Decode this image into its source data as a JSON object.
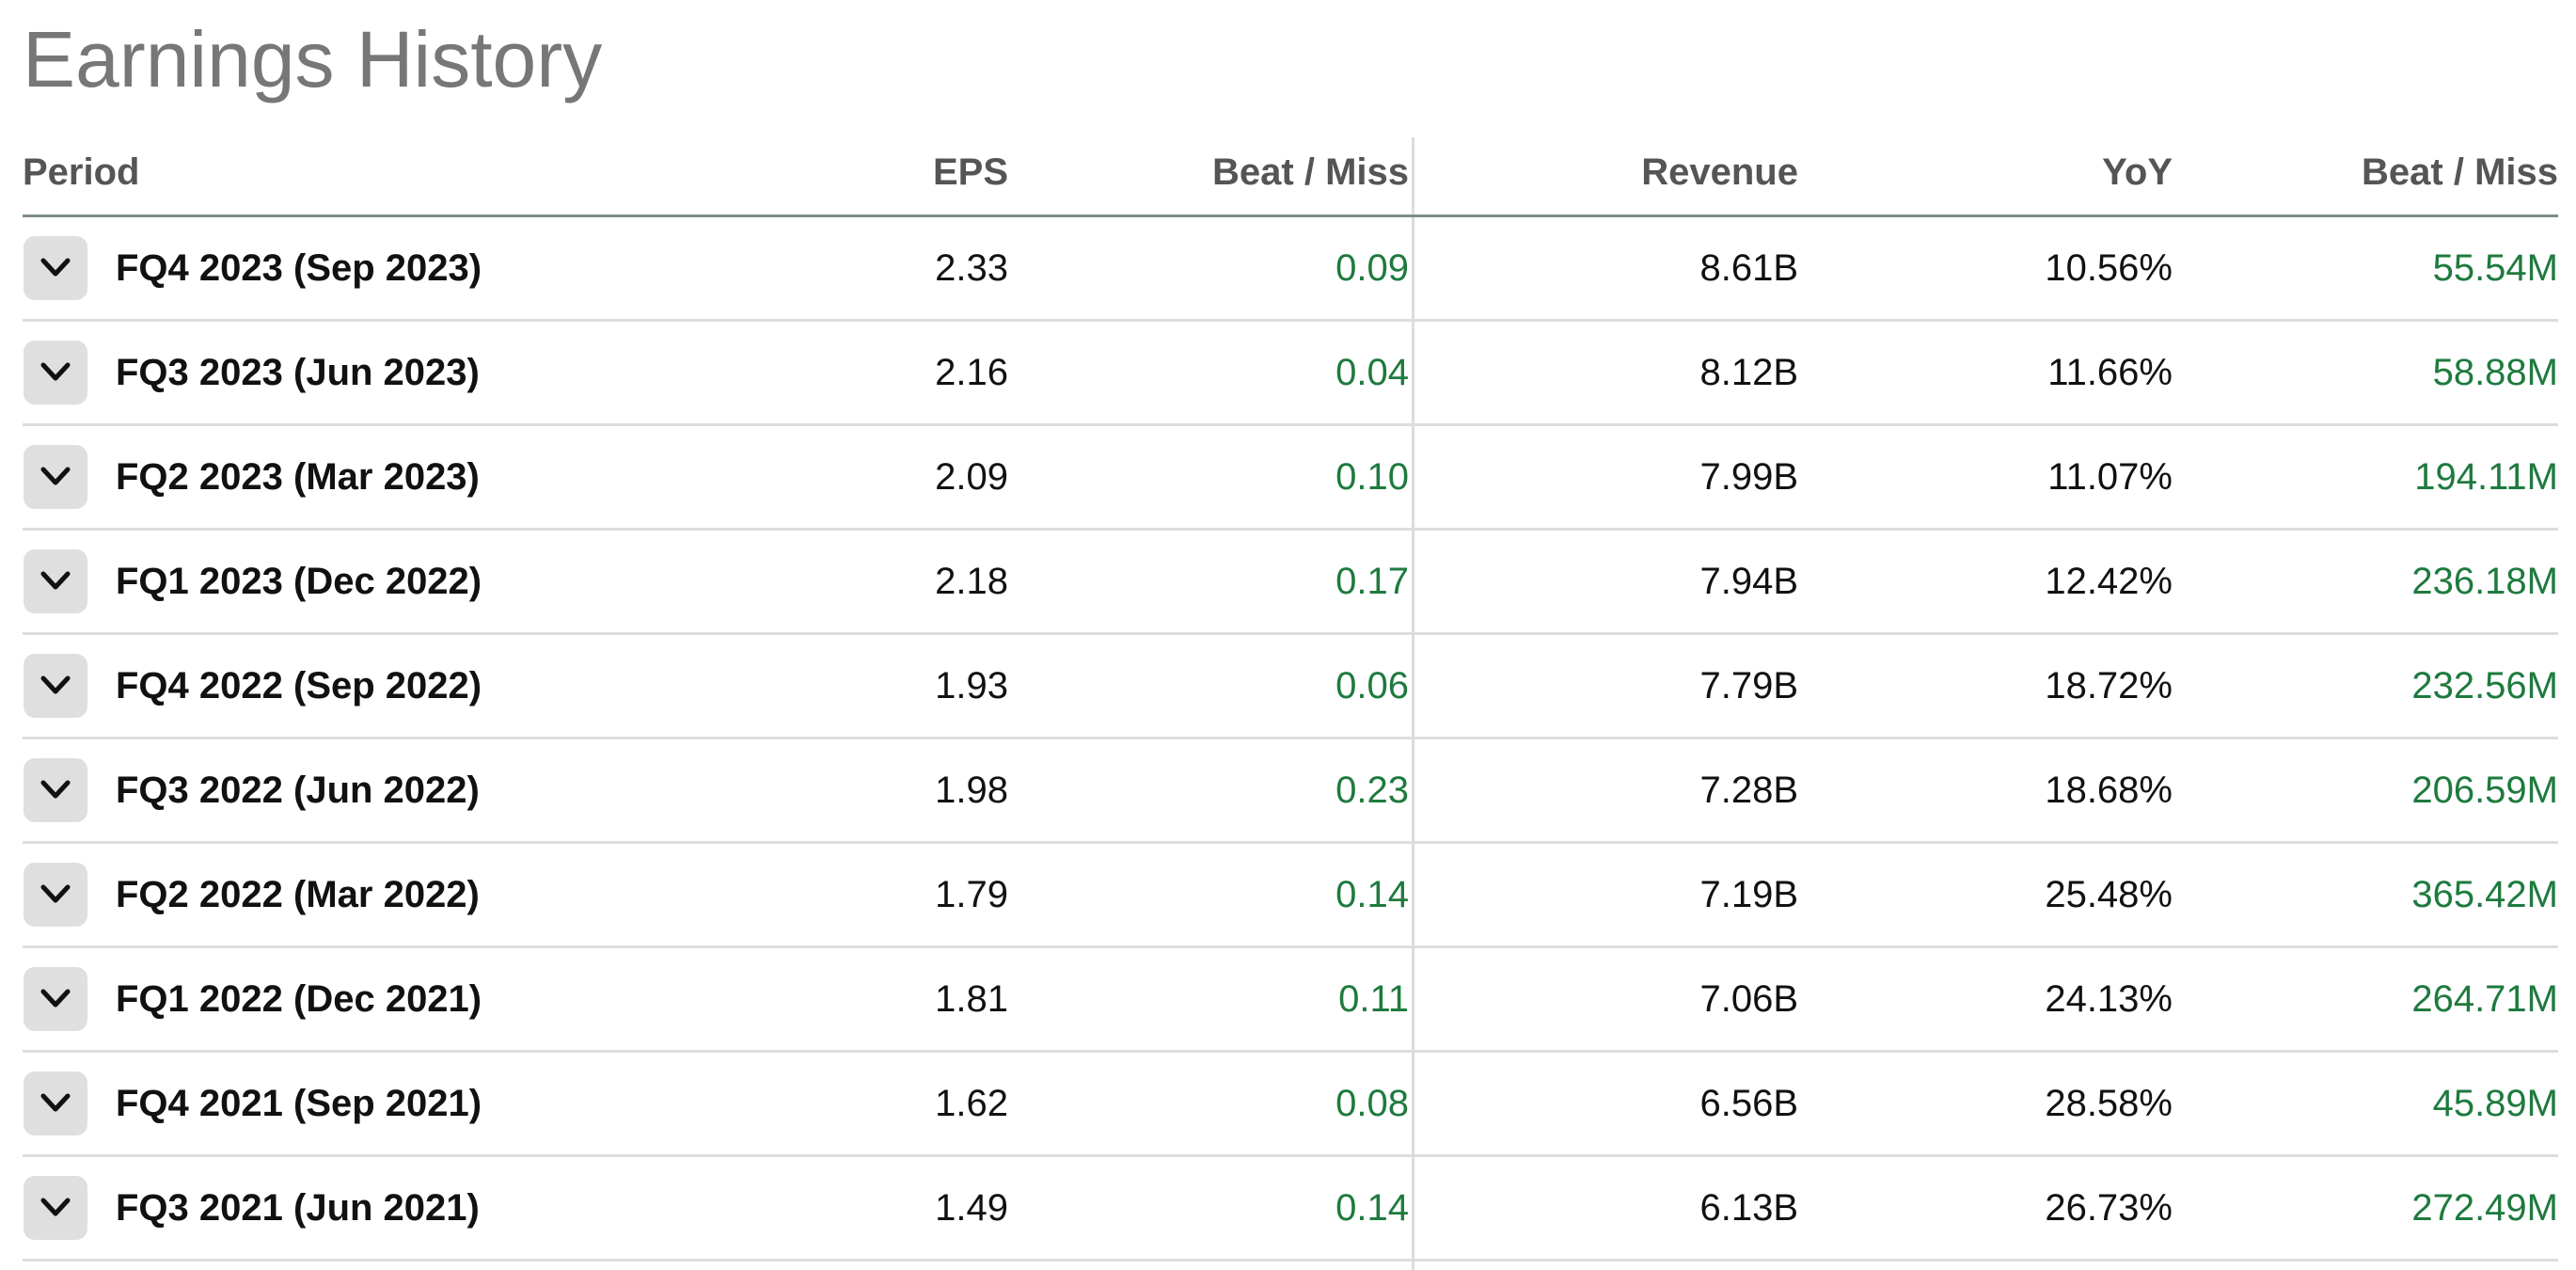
{
  "title": "Earnings History",
  "columns": {
    "period": "Period",
    "eps": "EPS",
    "eps_beat_miss": "Beat / Miss",
    "revenue": "Revenue",
    "yoy": "YoY",
    "revenue_beat_miss": "Beat / Miss"
  },
  "colors": {
    "positive": "#1e7a3e",
    "title": "#777777",
    "header": "#555555",
    "toggle_bg": "#dfdfdf"
  },
  "toggle_icon": "chevron-down-icon",
  "rows": [
    {
      "period": "FQ4 2023 (Sep 2023)",
      "eps": "2.33",
      "eps_beat_miss": "0.09",
      "revenue": "8.61B",
      "yoy": "10.56%",
      "revenue_beat_miss": "55.54M"
    },
    {
      "period": "FQ3 2023 (Jun 2023)",
      "eps": "2.16",
      "eps_beat_miss": "0.04",
      "revenue": "8.12B",
      "yoy": "11.66%",
      "revenue_beat_miss": "58.88M"
    },
    {
      "period": "FQ2 2023 (Mar 2023)",
      "eps": "2.09",
      "eps_beat_miss": "0.10",
      "revenue": "7.99B",
      "yoy": "11.07%",
      "revenue_beat_miss": "194.11M"
    },
    {
      "period": "FQ1 2023 (Dec 2022)",
      "eps": "2.18",
      "eps_beat_miss": "0.17",
      "revenue": "7.94B",
      "yoy": "12.42%",
      "revenue_beat_miss": "236.18M"
    },
    {
      "period": "FQ4 2022 (Sep 2022)",
      "eps": "1.93",
      "eps_beat_miss": "0.06",
      "revenue": "7.79B",
      "yoy": "18.72%",
      "revenue_beat_miss": "232.56M"
    },
    {
      "period": "FQ3 2022 (Jun 2022)",
      "eps": "1.98",
      "eps_beat_miss": "0.23",
      "revenue": "7.28B",
      "yoy": "18.68%",
      "revenue_beat_miss": "206.59M"
    },
    {
      "period": "FQ2 2022 (Mar 2022)",
      "eps": "1.79",
      "eps_beat_miss": "0.14",
      "revenue": "7.19B",
      "yoy": "25.48%",
      "revenue_beat_miss": "365.42M"
    },
    {
      "period": "FQ1 2022 (Dec 2021)",
      "eps": "1.81",
      "eps_beat_miss": "0.11",
      "revenue": "7.06B",
      "yoy": "24.13%",
      "revenue_beat_miss": "264.71M"
    },
    {
      "period": "FQ4 2021 (Sep 2021)",
      "eps": "1.62",
      "eps_beat_miss": "0.08",
      "revenue": "6.56B",
      "yoy": "28.58%",
      "revenue_beat_miss": "45.89M"
    },
    {
      "period": "FQ3 2021 (Jun 2021)",
      "eps": "1.49",
      "eps_beat_miss": "0.14",
      "revenue": "6.13B",
      "yoy": "26.73%",
      "revenue_beat_miss": "272.49M"
    }
  ]
}
